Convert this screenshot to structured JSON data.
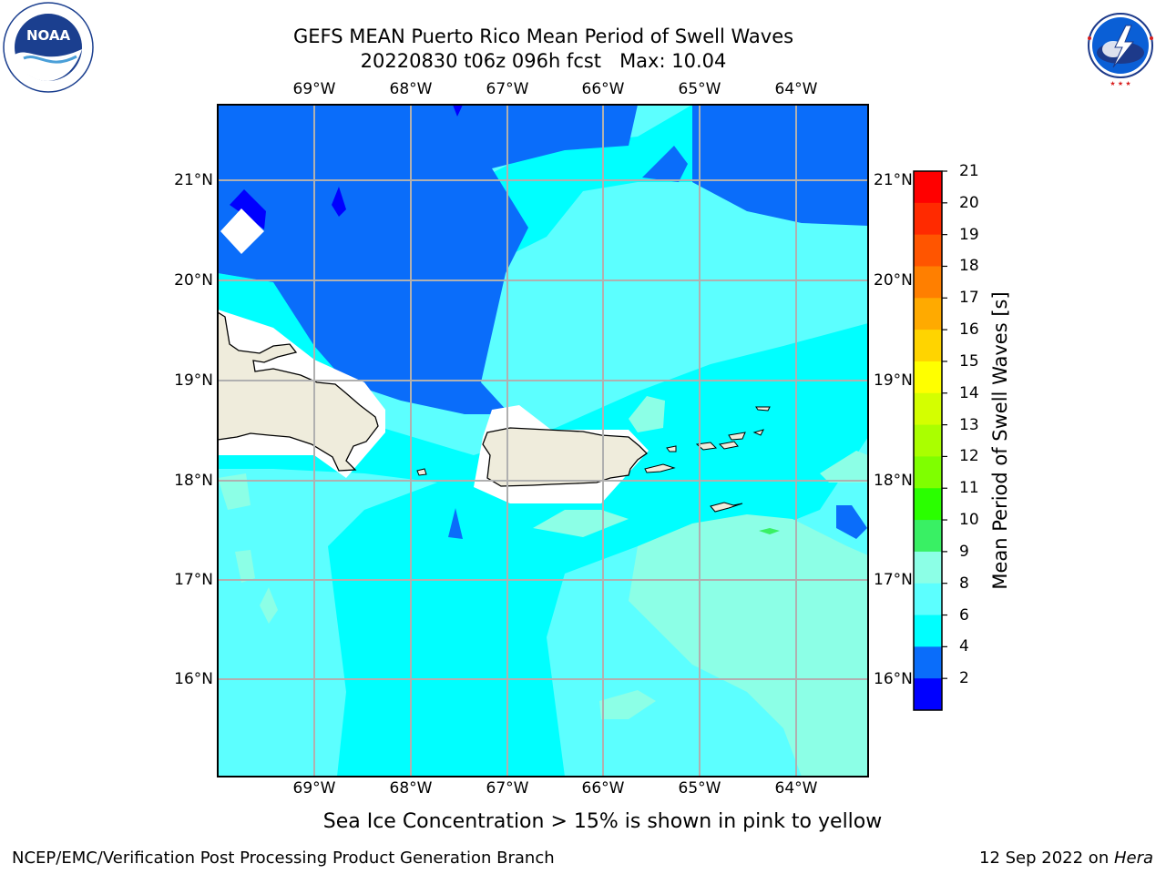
{
  "title": {
    "line1": "GEFS MEAN Puerto Rico Mean Period of Swell Waves",
    "line2": "20220830 t06z 096h fcst   Max: 10.04"
  },
  "logos": {
    "left": {
      "name": "noaa-logo",
      "text": "NOAA",
      "ring_text": "NATIONAL OCEANIC AND ATMOSPHERIC ADMINISTRATION · U.S. DEPARTMENT OF COMMERCE"
    },
    "right": {
      "name": "nws-logo",
      "ring_text": "NATIONAL WEATHER SERVICE"
    }
  },
  "map": {
    "lon_ticks": [
      "69°W",
      "68°W",
      "67°W",
      "66°W",
      "65°W",
      "64°W"
    ],
    "lat_ticks": [
      "21°N",
      "20°N",
      "19°N",
      "18°N",
      "17°N",
      "16°N"
    ],
    "colors": {
      "deep_blue": "#0a6dfa",
      "cyan": "#00ffff",
      "light_cyan": "#5cffff",
      "aqua": "#8cffe6",
      "land": "#efecdc",
      "grid": "#b0b0b0"
    }
  },
  "colorbar": {
    "title": "Mean Period of Swell Waves [s]",
    "labels": [
      "21",
      "20",
      "19",
      "18",
      "17",
      "16",
      "15",
      "14",
      "13",
      "12",
      "11",
      "10",
      "9",
      "8",
      "6",
      "4",
      "2"
    ],
    "colors": [
      "#ff0000",
      "#ff2a00",
      "#ff5500",
      "#ff7f00",
      "#ffaa00",
      "#ffd400",
      "#ffff00",
      "#d4ff00",
      "#aaff00",
      "#7fff00",
      "#2aff00",
      "#39f064",
      "#8cffe6",
      "#5cffff",
      "#00ffff",
      "#0a6dfa",
      "#0000ff"
    ]
  },
  "caption": "Sea Ice Concentration > 15% is shown in pink to yellow",
  "footer": {
    "left": "NCEP/EMC/Verification Post Processing Product Generation Branch",
    "right_date": "12 Sep 2022 on ",
    "right_host": "Hera"
  }
}
